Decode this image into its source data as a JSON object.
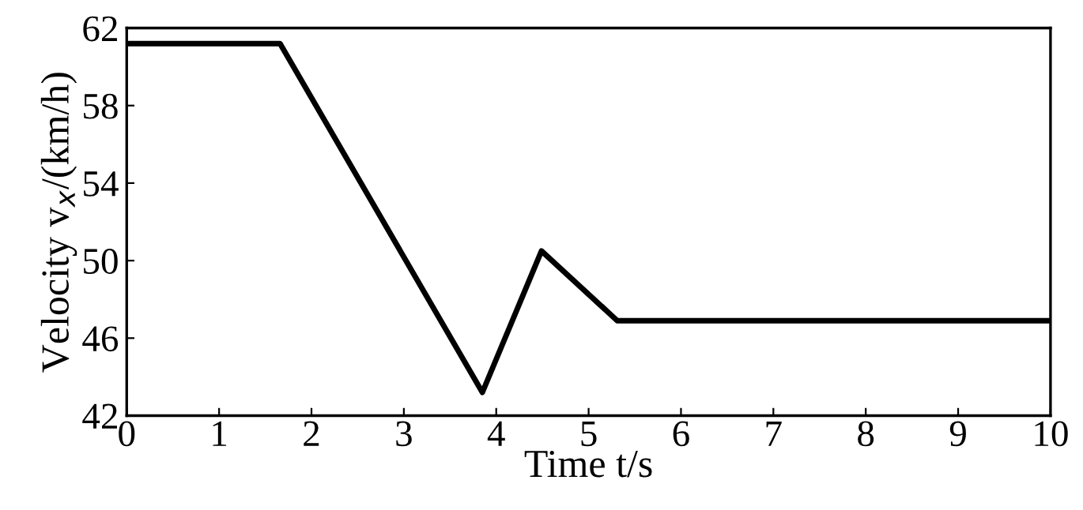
{
  "chart_data": {
    "type": "line",
    "xlabel": "Time t/s",
    "ylabel": "Velocity v$_{x}$/(km/h)",
    "x": [
      0,
      1.66,
      3.85,
      4.49,
      5.31,
      10
    ],
    "series": [
      {
        "color": "#000000",
        "values": [
          61.2,
          61.2,
          43.2,
          50.5,
          46.9,
          46.9
        ]
      }
    ],
    "xlim": [
      0,
      10
    ],
    "xticks": [
      0,
      1,
      2,
      3,
      4,
      5,
      6,
      7,
      8,
      9,
      10
    ],
    "ylim": [
      42,
      62
    ],
    "yticks": [
      42,
      46,
      50,
      54,
      58,
      62
    ],
    "grid": false,
    "legend": false,
    "marker": "none",
    "line_style": "solid"
  }
}
